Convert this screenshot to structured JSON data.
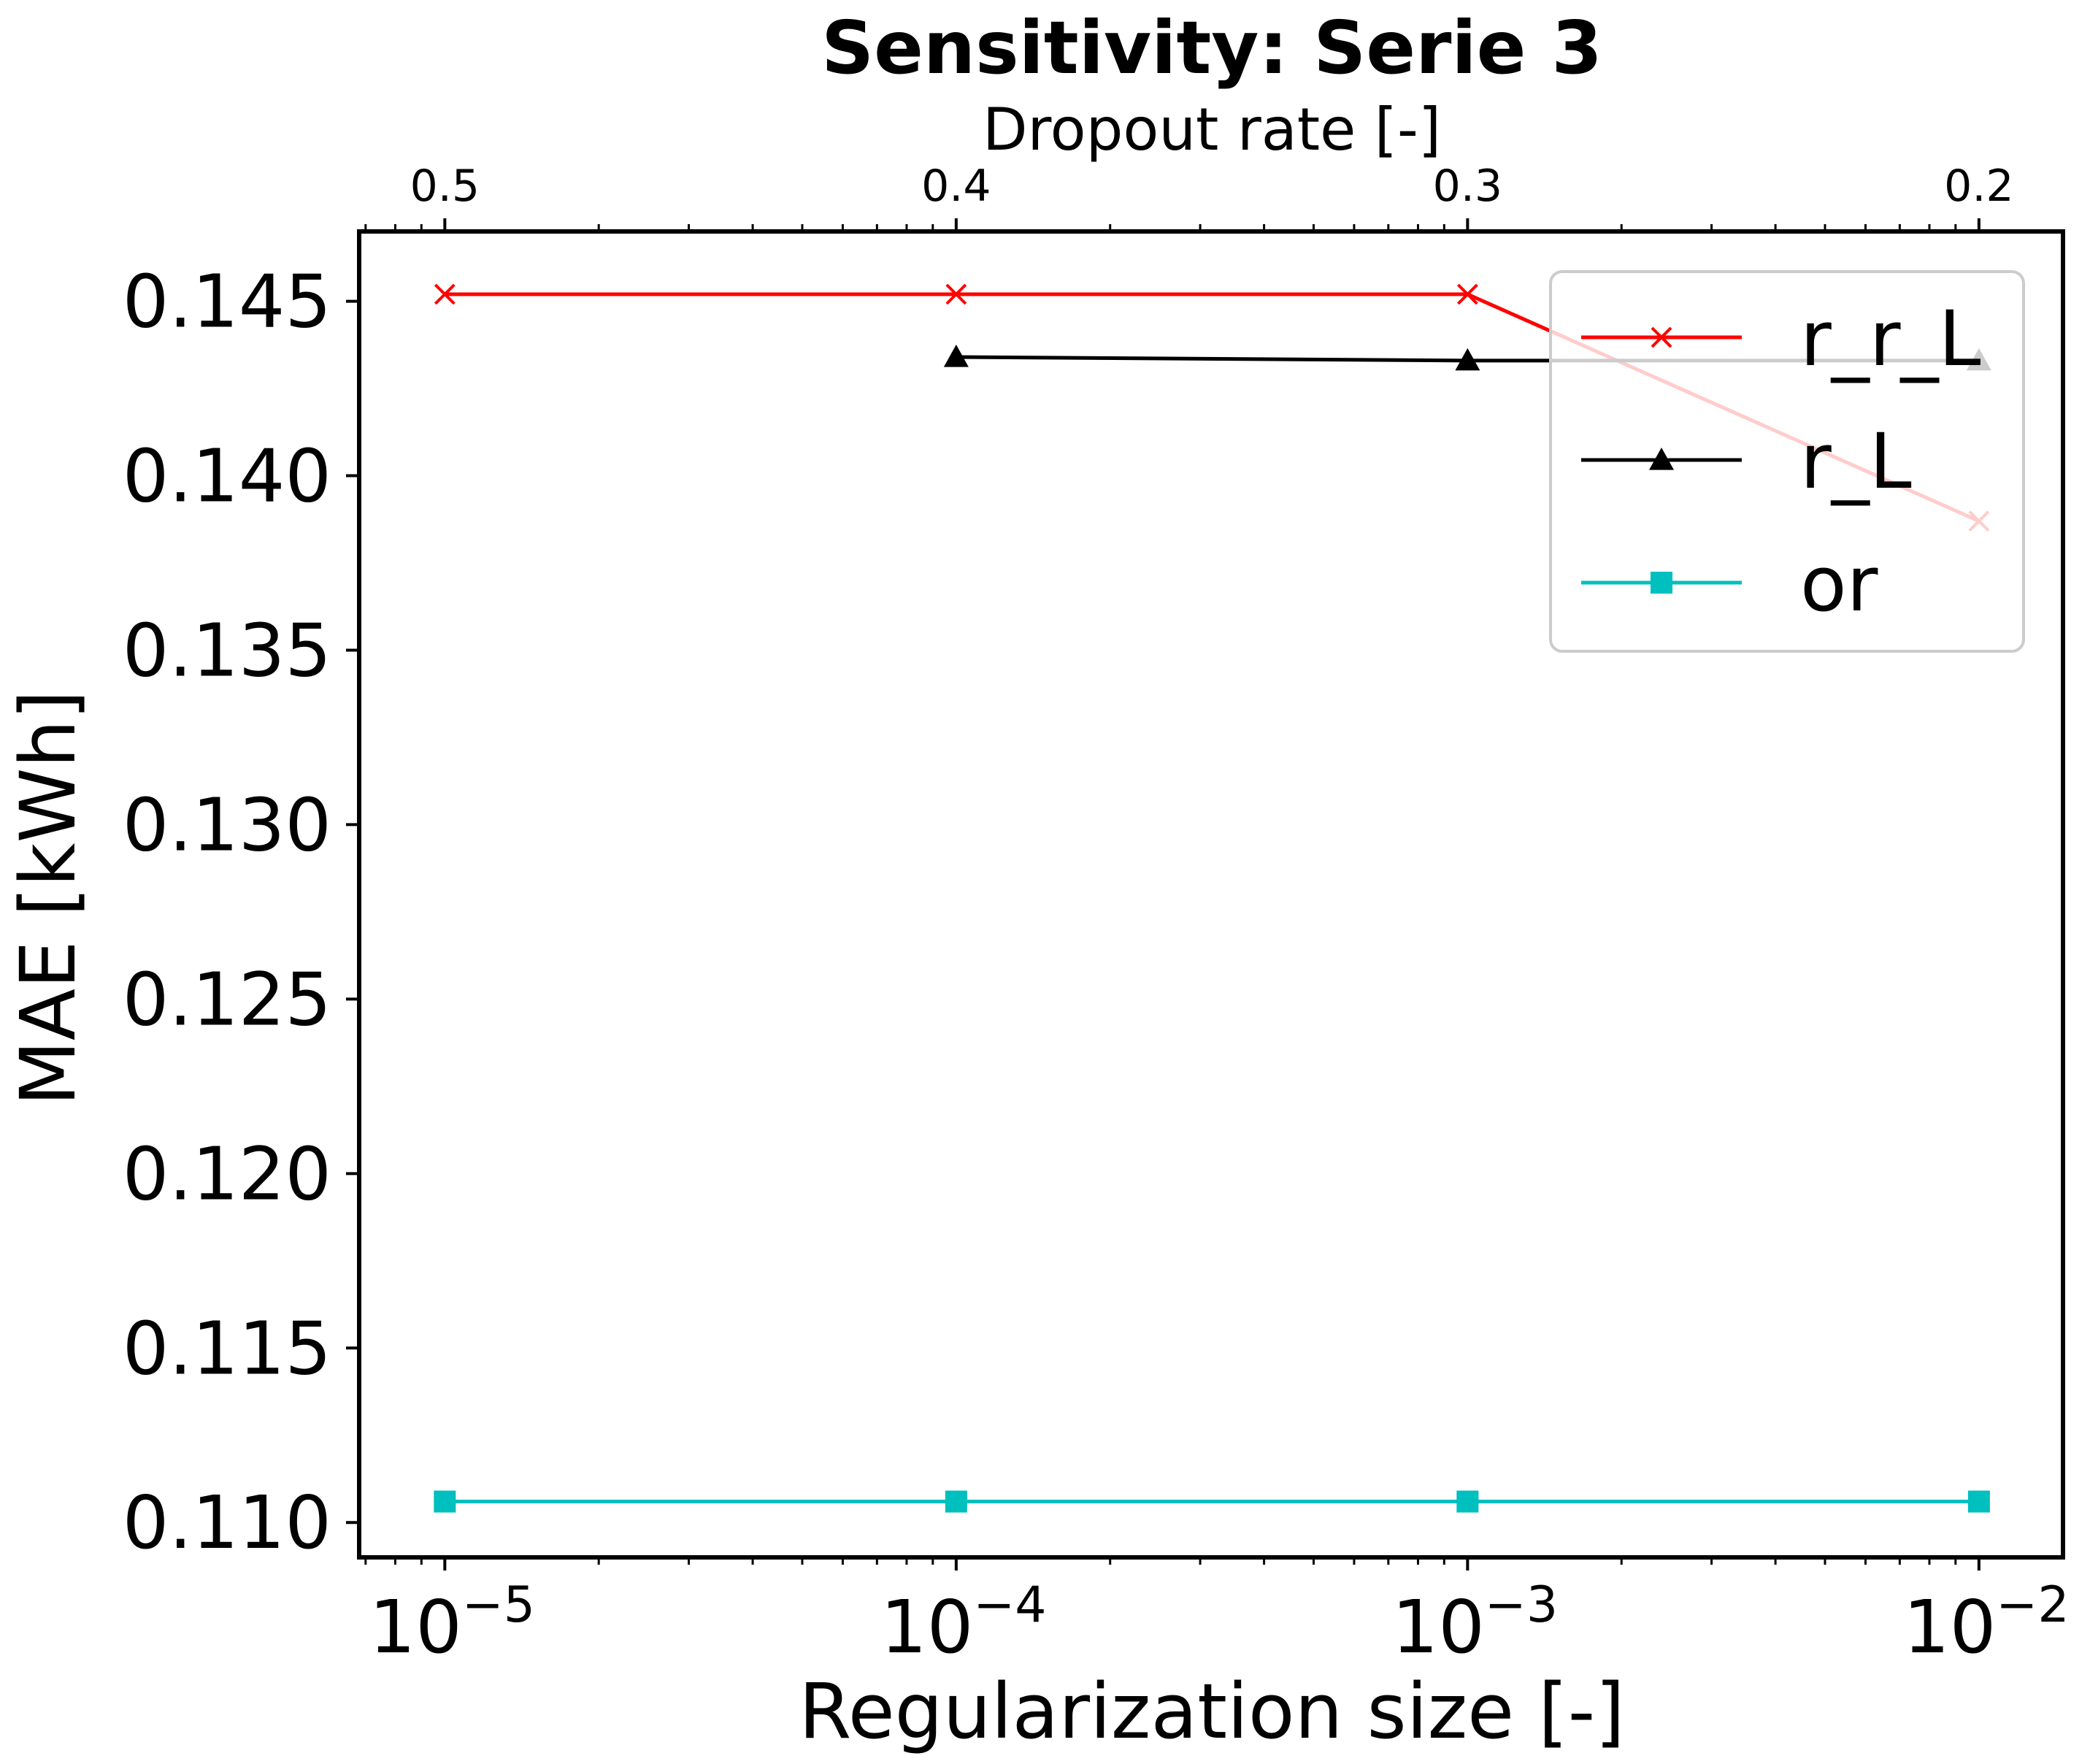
{
  "chart_data": {
    "type": "line",
    "title": "Sensitivity: Serie 3",
    "xlabel": "Regularization size [-]",
    "ylabel": "MAE [kWh]",
    "top_xlabel": "Dropout rate [-]",
    "x_scale": "log",
    "xlim": [
      6.8e-06,
      0.0146
    ],
    "ylim": [
      0.109,
      0.147
    ],
    "x_ticks": [
      {
        "value": 1e-05,
        "base": "10",
        "exp": "−5"
      },
      {
        "value": 0.0001,
        "base": "10",
        "exp": "−4"
      },
      {
        "value": 0.001,
        "base": "10",
        "exp": "−3"
      },
      {
        "value": 0.01,
        "base": "10",
        "exp": "−2"
      }
    ],
    "top_ticks": [
      {
        "value": 1e-05,
        "label": "0.5"
      },
      {
        "value": 0.0001,
        "label": "0.4"
      },
      {
        "value": 0.001,
        "label": "0.3"
      },
      {
        "value": 0.01,
        "label": "0.2"
      }
    ],
    "y_ticks": [
      {
        "value": 0.11,
        "label": "0.110"
      },
      {
        "value": 0.115,
        "label": "0.115"
      },
      {
        "value": 0.12,
        "label": "0.120"
      },
      {
        "value": 0.125,
        "label": "0.125"
      },
      {
        "value": 0.13,
        "label": "0.130"
      },
      {
        "value": 0.135,
        "label": "0.135"
      },
      {
        "value": 0.14,
        "label": "0.140"
      },
      {
        "value": 0.145,
        "label": "0.145"
      }
    ],
    "grid": false,
    "legend_position": "upper right",
    "series": [
      {
        "name": "r_r_L",
        "color": "#ff0000",
        "marker": "x",
        "x": [
          1e-05,
          0.0001,
          0.001,
          0.01
        ],
        "y": [
          0.1452,
          0.1452,
          0.1452,
          0.1387
        ]
      },
      {
        "name": "r_L",
        "color": "#000000",
        "marker": "triangle",
        "x": [
          0.0001,
          0.001,
          0.01
        ],
        "y": [
          0.1434,
          0.1433,
          0.1433
        ]
      },
      {
        "name": "or",
        "color": "#00bfbf",
        "marker": "square",
        "x": [
          1e-05,
          0.0001,
          0.001,
          0.01
        ],
        "y": [
          0.1106,
          0.1106,
          0.1106,
          0.1106
        ]
      }
    ]
  }
}
